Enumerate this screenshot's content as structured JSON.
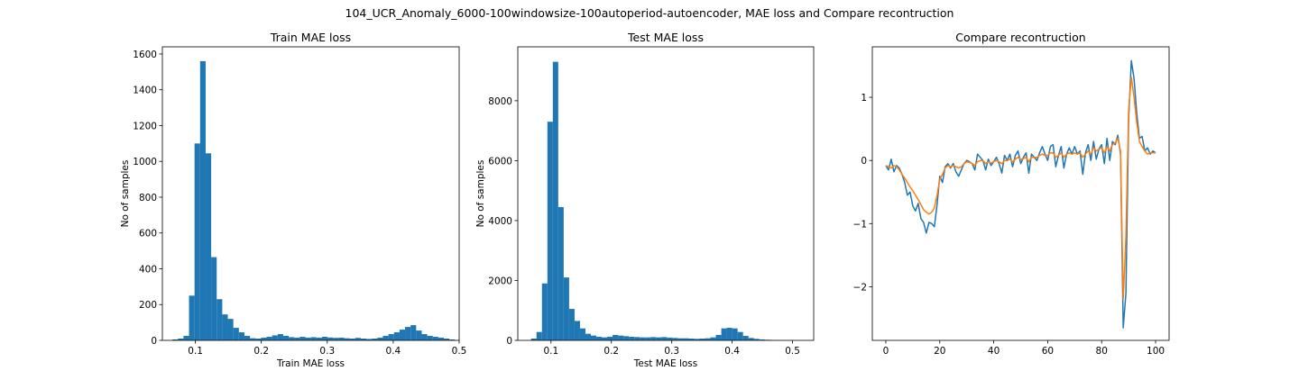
{
  "figure": {
    "suptitle": "104_UCR_Anomaly_6000-100windowsize-100autoperiod-autoencoder, MAE loss and Compare recontruction",
    "colors": {
      "bar": "#1f77b4",
      "actual": "#1f77b4",
      "reconstruction": "#ff7f0e"
    }
  },
  "chart_data": [
    {
      "type": "bar",
      "title": "Train MAE loss",
      "xlabel": "Train MAE loss",
      "ylabel": "No of samples",
      "xlim": [
        0.05,
        0.5
      ],
      "ylim": [
        0,
        1640
      ],
      "xticks": [
        0.1,
        0.2,
        0.3,
        0.4,
        0.5
      ],
      "xtick_labels": [
        "0.1",
        "0.2",
        "0.3",
        "0.4",
        "0.5"
      ],
      "yticks": [
        0,
        200,
        400,
        600,
        800,
        1000,
        1200,
        1400,
        1600
      ],
      "ytick_labels": [
        "0",
        "200",
        "400",
        "600",
        "800",
        "1000",
        "1200",
        "1400",
        "1600"
      ],
      "bin_start": 0.0652,
      "bin_width": 0.0084,
      "values": [
        5,
        10,
        25,
        250,
        1100,
        1560,
        1045,
        465,
        230,
        145,
        120,
        70,
        45,
        25,
        12,
        10,
        15,
        20,
        28,
        35,
        25,
        18,
        15,
        20,
        15,
        18,
        15,
        20,
        16,
        14,
        15,
        12,
        10,
        14,
        10,
        8,
        10,
        15,
        25,
        35,
        45,
        60,
        75,
        85,
        55,
        35,
        25,
        20,
        15,
        10,
        5
      ]
    },
    {
      "type": "bar",
      "title": "Test MAE loss",
      "xlabel": "Test MAE loss",
      "ylabel": "No of samples",
      "xlim": [
        0.045,
        0.535
      ],
      "ylim": [
        0,
        9800
      ],
      "xticks": [
        0.1,
        0.2,
        0.3,
        0.4,
        0.5
      ],
      "xtick_labels": [
        "0.1",
        "0.2",
        "0.3",
        "0.4",
        "0.5"
      ],
      "yticks": [
        0,
        2000,
        4000,
        6000,
        8000
      ],
      "ytick_labels": [
        "0",
        "2000",
        "4000",
        "6000",
        "8000"
      ],
      "bin_start": 0.067,
      "bin_width": 0.009,
      "values": [
        60,
        280,
        1900,
        7300,
        9300,
        4450,
        2100,
        1050,
        650,
        400,
        220,
        160,
        120,
        100,
        120,
        180,
        160,
        140,
        120,
        110,
        100,
        100,
        110,
        100,
        110,
        90,
        80,
        70,
        70,
        60,
        50,
        60,
        70,
        100,
        180,
        400,
        420,
        400,
        280,
        150,
        80,
        50,
        30,
        20,
        10,
        5
      ]
    },
    {
      "type": "line",
      "title": "Compare recontruction",
      "xlabel": "",
      "ylabel": "",
      "xlim": [
        -5,
        105
      ],
      "ylim": [
        -2.85,
        1.8
      ],
      "xticks": [
        0,
        20,
        40,
        60,
        80,
        100
      ],
      "xtick_labels": [
        "0",
        "20",
        "40",
        "60",
        "80",
        "100"
      ],
      "yticks": [
        -2,
        -1,
        0,
        1
      ],
      "ytick_labels": [
        "−2",
        "−1",
        "0",
        "1"
      ],
      "x_start": 0,
      "x_step": 1,
      "series": [
        {
          "role": "actual",
          "values": [
            -0.08,
            -0.15,
            0.02,
            -0.18,
            -0.08,
            -0.12,
            -0.22,
            -0.35,
            -0.55,
            -0.5,
            -0.72,
            -0.8,
            -0.68,
            -0.92,
            -0.98,
            -1.15,
            -0.98,
            -1.0,
            -1.05,
            -0.7,
            -0.25,
            -0.35,
            -0.1,
            -0.05,
            -0.12,
            -0.05,
            -0.18,
            -0.25,
            -0.15,
            -0.05,
            0.0,
            -0.02,
            -0.05,
            -0.15,
            0.1,
            0.05,
            0.0,
            -0.15,
            0.02,
            -0.08,
            -0.02,
            0.05,
            -0.05,
            -0.2,
            0.08,
            0.0,
            0.1,
            -0.1,
            0.08,
            0.15,
            -0.05,
            0.05,
            0.12,
            -0.2,
            0.1,
            0.05,
            0.0,
            0.12,
            0.22,
            0.1,
            0.0,
            0.22,
            0.25,
            -0.1,
            0.08,
            0.22,
            -0.12,
            0.1,
            0.2,
            0.1,
            0.22,
            0.1,
            0.15,
            -0.22,
            0.12,
            0.25,
            0.0,
            0.3,
            0.02,
            0.18,
            0.25,
            -0.05,
            0.35,
            0.0,
            0.3,
            0.25,
            0.4,
            0.1,
            -2.65,
            -2.1,
            0.65,
            1.58,
            1.3,
            0.75,
            0.35,
            0.38,
            0.15,
            0.2,
            0.1,
            0.15,
            0.12
          ]
        },
        {
          "role": "reconstruction",
          "values": [
            -0.08,
            -0.1,
            -0.12,
            -0.08,
            -0.1,
            -0.15,
            -0.22,
            -0.28,
            -0.35,
            -0.42,
            -0.48,
            -0.55,
            -0.62,
            -0.7,
            -0.78,
            -0.82,
            -0.85,
            -0.82,
            -0.75,
            -0.55,
            -0.3,
            -0.22,
            -0.12,
            -0.08,
            -0.1,
            -0.08,
            -0.1,
            -0.12,
            -0.1,
            -0.05,
            -0.02,
            -0.03,
            -0.05,
            -0.08,
            -0.02,
            0.0,
            0.0,
            -0.05,
            -0.02,
            -0.04,
            -0.02,
            0.0,
            -0.02,
            -0.05,
            0.0,
            0.0,
            0.02,
            -0.02,
            0.02,
            0.05,
            0.02,
            0.03,
            0.05,
            -0.02,
            0.05,
            0.05,
            0.05,
            0.08,
            0.1,
            0.08,
            0.08,
            0.12,
            0.12,
            0.05,
            0.08,
            0.12,
            0.05,
            0.1,
            0.12,
            0.1,
            0.12,
            0.1,
            0.12,
            0.05,
            0.1,
            0.15,
            0.1,
            0.2,
            0.15,
            0.18,
            0.2,
            0.12,
            0.22,
            0.15,
            0.25,
            0.28,
            0.35,
            0.15,
            -2.2,
            -1.2,
            0.8,
            1.32,
            1.0,
            0.6,
            0.3,
            0.22,
            0.15,
            0.1,
            0.12,
            0.12,
            0.12
          ]
        }
      ]
    }
  ]
}
